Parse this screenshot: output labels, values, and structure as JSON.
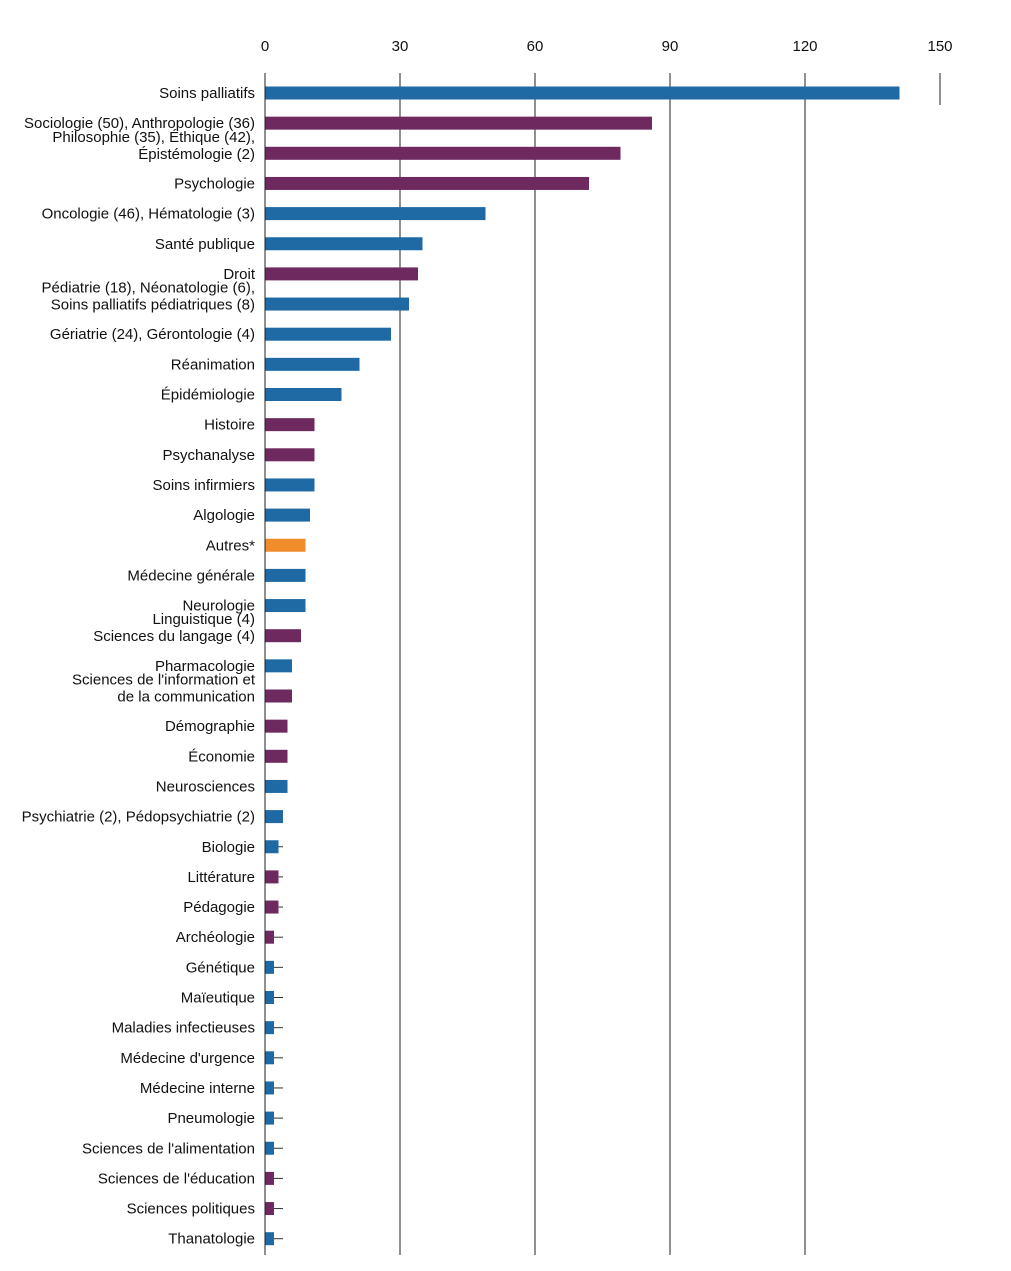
{
  "chart_data": {
    "type": "bar",
    "orientation": "horizontal",
    "xlim": [
      0,
      150
    ],
    "ticks": [
      "0",
      "30",
      "60",
      "90",
      "120",
      "150"
    ],
    "tick_values": [
      0,
      30,
      60,
      90,
      120,
      150
    ],
    "grid": true,
    "colors": {
      "blue": "#1f6aa5",
      "purple": "#6e2a5e",
      "orange": "#f08c2a"
    },
    "categories": [
      [
        "Soins palliatifs"
      ],
      [
        "Sociologie (50), Anthropologie (36)"
      ],
      [
        "Philosophie (35), Éthique (42),",
        "Épistémologie (2)"
      ],
      [
        "Psychologie"
      ],
      [
        "Oncologie (46), Hématologie (3)"
      ],
      [
        "Santé publique"
      ],
      [
        "Droit"
      ],
      [
        "Pédiatrie (18), Néonatologie (6),",
        "Soins palliatifs pédiatriques (8)"
      ],
      [
        "Gériatrie (24), Gérontologie (4)"
      ],
      [
        "Réanimation"
      ],
      [
        "Épidémiologie"
      ],
      [
        "Histoire"
      ],
      [
        "Psychanalyse"
      ],
      [
        "Soins infirmiers"
      ],
      [
        "Algologie"
      ],
      [
        "Autres*"
      ],
      [
        "Médecine générale"
      ],
      [
        "Neurologie"
      ],
      [
        "Linguistique (4)",
        "Sciences du langage (4)"
      ],
      [
        "Pharmacologie"
      ],
      [
        "Sciences de l'information et",
        "de la communication"
      ],
      [
        "Démographie"
      ],
      [
        "Économie"
      ],
      [
        "Neurosciences"
      ],
      [
        "Psychiatrie (2), Pédopsychiatrie (2)"
      ],
      [
        "Biologie"
      ],
      [
        "Littérature"
      ],
      [
        "Pédagogie"
      ],
      [
        "Archéologie"
      ],
      [
        "Génétique"
      ],
      [
        "Maïeutique"
      ],
      [
        "Maladies infectieuses"
      ],
      [
        "Médecine d'urgence"
      ],
      [
        "Médecine interne"
      ],
      [
        "Pneumologie"
      ],
      [
        "Sciences de l'alimentation"
      ],
      [
        "Sciences de l'éducation"
      ],
      [
        "Sciences politiques"
      ],
      [
        "Thanatologie"
      ]
    ],
    "values": [
      141,
      86,
      79,
      72,
      49,
      35,
      34,
      32,
      28,
      21,
      17,
      11,
      11,
      11,
      10,
      9,
      9,
      9,
      8,
      6,
      6,
      5,
      5,
      5,
      4,
      3,
      3,
      3,
      2,
      2,
      2,
      2,
      2,
      2,
      2,
      2,
      2,
      2,
      2
    ],
    "bar_colors": [
      "blue",
      "purple",
      "purple",
      "purple",
      "blue",
      "blue",
      "purple",
      "blue",
      "blue",
      "blue",
      "blue",
      "purple",
      "purple",
      "blue",
      "blue",
      "orange",
      "blue",
      "blue",
      "purple",
      "blue",
      "purple",
      "purple",
      "purple",
      "blue",
      "blue",
      "blue",
      "purple",
      "purple",
      "purple",
      "blue",
      "blue",
      "blue",
      "blue",
      "blue",
      "blue",
      "blue",
      "purple",
      "purple",
      "blue"
    ]
  }
}
